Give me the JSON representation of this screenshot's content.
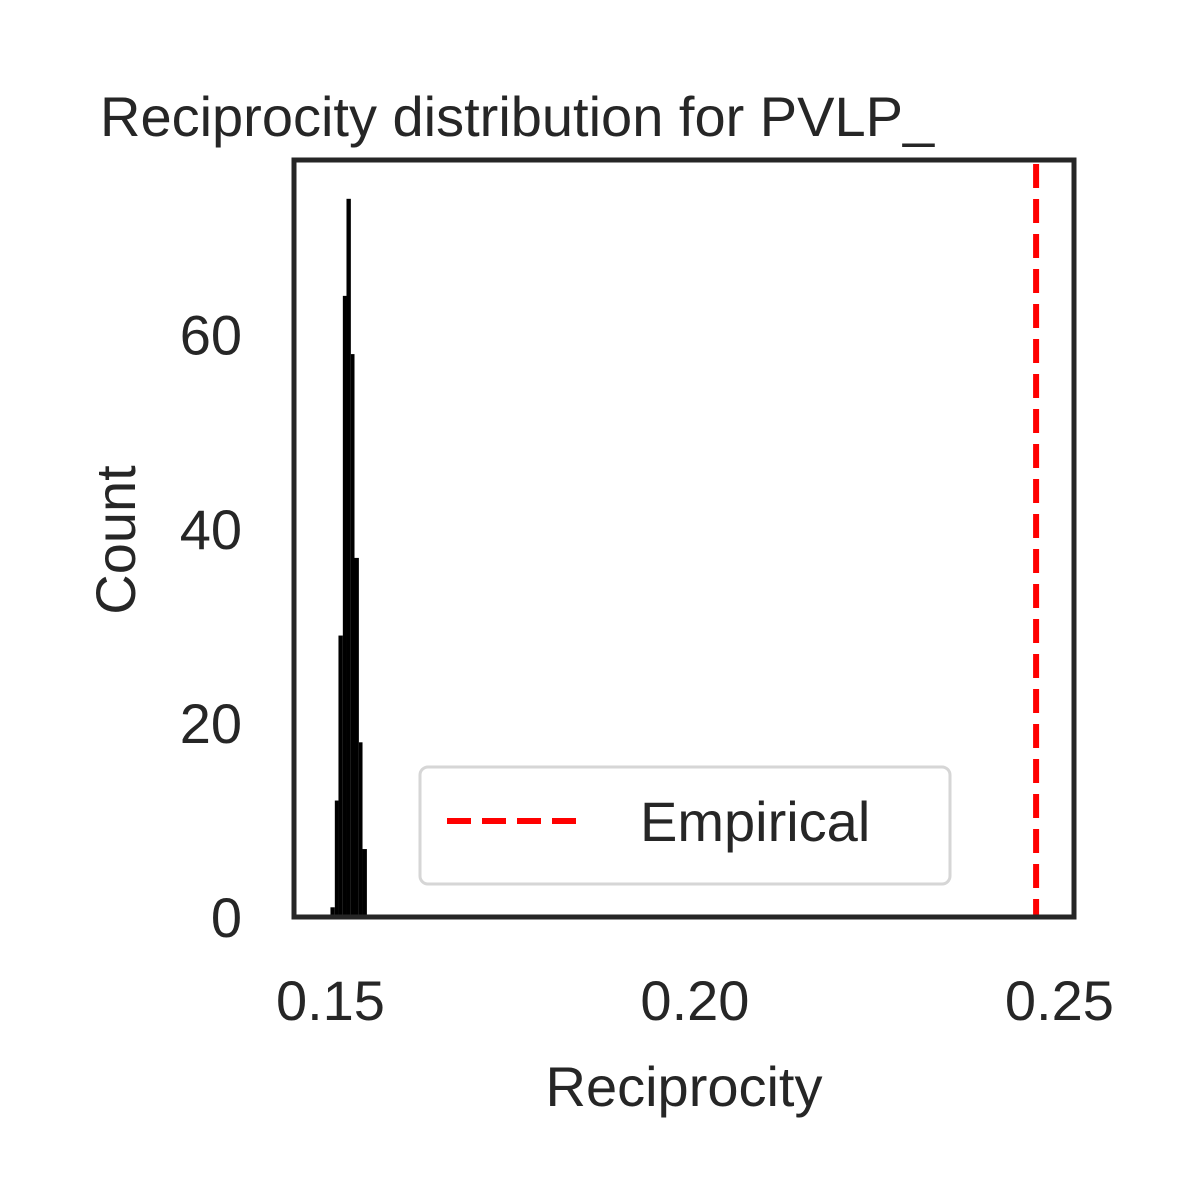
{
  "chart_data": {
    "type": "bar",
    "title": "Reciprocity distribution for PVLP_",
    "xlabel": "Reciprocity",
    "ylabel": "Count",
    "xlim": [
      0.145,
      0.252
    ],
    "ylim": [
      0,
      78
    ],
    "x_ticks": [
      0.15,
      0.2,
      0.25
    ],
    "x_tick_labels": [
      "0.15",
      "0.20",
      "0.25"
    ],
    "y_ticks": [
      0,
      20,
      40,
      60
    ],
    "y_tick_labels": [
      "0",
      "20",
      "40",
      "60"
    ],
    "grid": false,
    "histogram": {
      "color": "#000000",
      "bins": [
        {
          "x0": 0.15,
          "x1": 0.1506,
          "count": 1
        },
        {
          "x0": 0.1506,
          "x1": 0.1511,
          "count": 12
        },
        {
          "x0": 0.1511,
          "x1": 0.1517,
          "count": 29
        },
        {
          "x0": 0.1517,
          "x1": 0.1522,
          "count": 64
        },
        {
          "x0": 0.1522,
          "x1": 0.1528,
          "count": 74
        },
        {
          "x0": 0.1528,
          "x1": 0.1533,
          "count": 58
        },
        {
          "x0": 0.1533,
          "x1": 0.1539,
          "count": 37
        },
        {
          "x0": 0.1539,
          "x1": 0.1544,
          "count": 18
        },
        {
          "x0": 0.1544,
          "x1": 0.155,
          "count": 7
        }
      ]
    },
    "empirical": {
      "value": 0.2468,
      "label": "Empirical",
      "color": "#ff0000",
      "style": "dashed"
    },
    "legend": {
      "placement": "lower-center",
      "entries": [
        "Empirical"
      ]
    }
  }
}
